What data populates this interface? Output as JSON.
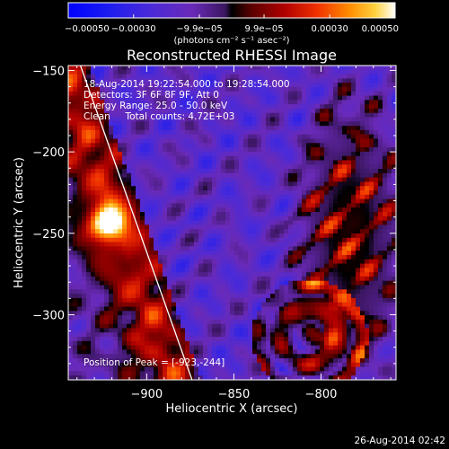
{
  "chart_data": {
    "type": "heatmap",
    "title": "Reconstructed RHESSI Image",
    "xlabel": "Heliocentric X (arcsec)",
    "ylabel": "Heliocentric Y (arcsec)",
    "xlim": [
      -945,
      -757
    ],
    "ylim": [
      -340,
      -147
    ],
    "x_ticks": [
      -900,
      -850,
      -800
    ],
    "y_ticks": [
      -150,
      -200,
      -250,
      -300
    ],
    "x_tick_labels": [
      "−900",
      "−850",
      "−800"
    ],
    "y_tick_labels": [
      "−150",
      "−200",
      "−250",
      "−300"
    ],
    "colorbar": {
      "range": [
        -0.0005,
        0.0005
      ],
      "tick_values": [
        -0.0005,
        -0.0003,
        -9.9e-05,
        9.9e-05,
        0.0003,
        0.0005
      ],
      "tick_labels": [
        "−0.00050",
        "−0.00030",
        "−9.9e−05",
        "9.9e−05",
        "0.00030",
        "0.00050"
      ],
      "unit_label": "(photons cm⁻² s⁻¹ asec⁻²)"
    },
    "annotations": {
      "time_range": "18-Aug-2014 19:22:54.000 to 19:28:54.000",
      "detectors": "Detectors: 3F 6F 8F 9F, Att 0",
      "energy_range": "Energy Range: 25.0 - 50.0 keV",
      "method_counts": "Clean     Total counts: 4.72E+03",
      "peak": "Position of Peak = [-923,-244]"
    },
    "peak_position": [
      -923,
      -244
    ],
    "limb_line": [
      [
        -938,
        -147
      ],
      [
        -874,
        -340
      ]
    ],
    "footer_timestamp": "26-Aug-2014 02:42"
  }
}
